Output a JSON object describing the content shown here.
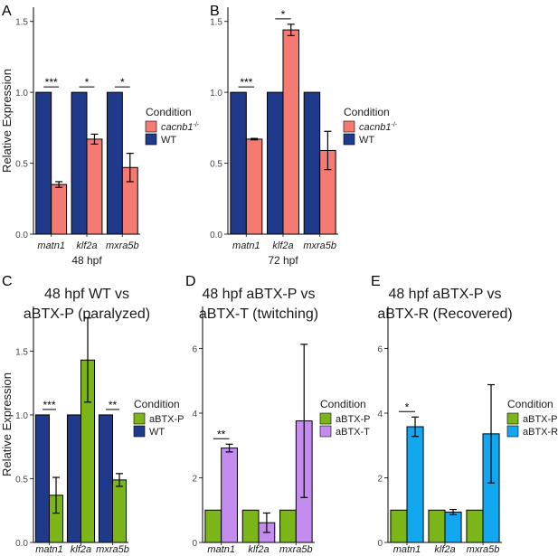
{
  "figure": {
    "shared_ylabel": "Relative Expression"
  },
  "colors": {
    "WT": "#1f3a8a",
    "cacnb1": "#f47a72",
    "aBTX-P": "#7cb518",
    "aBTX-T": "#c58cf0",
    "aBTX-R": "#12a8f0",
    "outline": "#000000"
  },
  "chart_data": [
    {
      "panel": "A",
      "type": "bar",
      "title": "",
      "xlabel": "48 hpf",
      "ylabel": "Relative Expression",
      "ylim": [
        0,
        1.6
      ],
      "yticks": [
        "0.0",
        "0.5",
        "1.0",
        "1.5"
      ],
      "ytick_values": [
        0,
        0.5,
        1.0,
        1.5
      ],
      "categories": [
        "matn1",
        "klf2a",
        "mxra5b"
      ],
      "series": [
        {
          "name": "WT",
          "color": "#1f3a8a",
          "values": [
            1.0,
            1.0,
            1.0
          ],
          "err": [
            0,
            0,
            0
          ]
        },
        {
          "name": "cacnb1",
          "name_sup": "-/-",
          "color": "#f47a72",
          "values": [
            0.35,
            0.67,
            0.47
          ],
          "err": [
            0.02,
            0.035,
            0.1
          ]
        }
      ],
      "significance": [
        "***",
        "*",
        "*"
      ],
      "legend_title": "Condition",
      "legend_order": [
        1,
        0
      ],
      "legend_placement": "right"
    },
    {
      "panel": "B",
      "type": "bar",
      "title": "",
      "xlabel": "72 hpf",
      "ylabel": "",
      "ylim": [
        0,
        1.6
      ],
      "yticks": [
        "0.0",
        "0.5",
        "1.0",
        "1.5"
      ],
      "ytick_values": [
        0,
        0.5,
        1.0,
        1.5
      ],
      "categories": [
        "matn1",
        "klf2a",
        "mxra5b"
      ],
      "series": [
        {
          "name": "WT",
          "color": "#1f3a8a",
          "values": [
            1.0,
            1.0,
            1.0
          ],
          "err": [
            0,
            0,
            0
          ]
        },
        {
          "name": "cacnb1",
          "name_sup": "-/-",
          "color": "#f47a72",
          "values": [
            0.67,
            1.44,
            0.59
          ],
          "err": [
            0.005,
            0.04,
            0.135
          ]
        }
      ],
      "significance": [
        "***",
        "*",
        ""
      ],
      "legend_title": "Condition",
      "legend_order": [
        1,
        0
      ],
      "legend_placement": "right"
    },
    {
      "panel": "C",
      "type": "bar",
      "title": "48 hpf WT vs aBTX-P (paralyzed)",
      "title_lines": [
        "48 hpf WT vs",
        "aBTX-P (paralyzed)"
      ],
      "xlabel": "",
      "ylabel": "Relative Expression",
      "ylim": [
        0,
        1.85
      ],
      "yticks": [
        "0.0",
        "0.5",
        "1.0",
        "1.5"
      ],
      "ytick_values": [
        0,
        0.5,
        1.0,
        1.5
      ],
      "categories": [
        "matn1",
        "klf2a",
        "mxra5b"
      ],
      "series": [
        {
          "name": "WT",
          "color": "#1f3a8a",
          "values": [
            1.0,
            1.0,
            1.0
          ],
          "err": [
            0,
            0,
            0
          ]
        },
        {
          "name": "aBTX-P",
          "color": "#7cb518",
          "values": [
            0.37,
            1.43,
            0.49
          ],
          "err": [
            0.14,
            0.33,
            0.05
          ]
        }
      ],
      "significance": [
        "***",
        "",
        "**"
      ],
      "legend_title": "Condition",
      "legend_order": [
        1,
        0
      ],
      "legend_placement": "right"
    },
    {
      "panel": "D",
      "type": "bar",
      "title": "48 hpf aBTX-P vs aBTX-T (twitching)",
      "title_lines": [
        "48 hpf aBTX-P  vs",
        "aBTX-T (twitching)"
      ],
      "xlabel": "",
      "ylabel": "",
      "ylim": [
        0,
        7.3
      ],
      "yticks": [
        "0",
        "2",
        "4",
        "6"
      ],
      "ytick_values": [
        0,
        2,
        4,
        6
      ],
      "categories": [
        "matn1",
        "klf2a",
        "mxra5b"
      ],
      "series": [
        {
          "name": "aBTX-P",
          "color": "#7cb518",
          "values": [
            1.0,
            1.0,
            1.0
          ],
          "err": [
            0,
            0,
            0
          ]
        },
        {
          "name": "aBTX-T",
          "color": "#c58cf0",
          "values": [
            2.92,
            0.61,
            3.76
          ],
          "err": [
            0.12,
            0.3,
            2.37
          ]
        }
      ],
      "significance": [
        "**",
        "",
        ""
      ],
      "legend_title": "Condition",
      "legend_order": [
        0,
        1
      ],
      "legend_placement": "right"
    },
    {
      "panel": "E",
      "type": "bar",
      "title": "48 hpf aBTX-P vs aBTX-R (Recovered)",
      "title_lines": [
        "48 hpf aBTX-P  vs",
        "aBTX-R (Recovered)"
      ],
      "xlabel": "",
      "ylabel": "",
      "ylim": [
        0,
        7.3
      ],
      "yticks": [
        "0",
        "2",
        "4",
        "6"
      ],
      "ytick_values": [
        0,
        2,
        4,
        6
      ],
      "categories": [
        "matn1",
        "klf2a",
        "mxra5b"
      ],
      "series": [
        {
          "name": "aBTX-P",
          "color": "#7cb518",
          "values": [
            1.0,
            1.0,
            1.0
          ],
          "err": [
            0,
            0,
            0
          ]
        },
        {
          "name": "aBTX-R",
          "color": "#12a8f0",
          "values": [
            3.58,
            0.94,
            3.36
          ],
          "err": [
            0.3,
            0.08,
            1.52
          ]
        }
      ],
      "significance": [
        "*",
        "",
        ""
      ],
      "legend_title": "Condition",
      "legend_order": [
        0,
        1
      ],
      "legend_placement": "right"
    }
  ]
}
